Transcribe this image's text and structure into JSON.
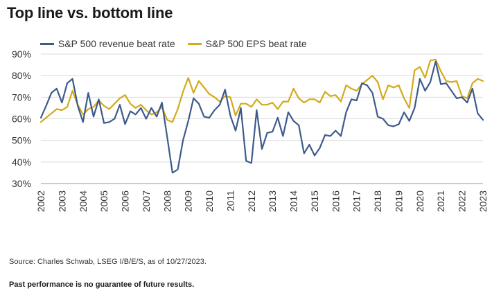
{
  "title": "Top line vs. bottom line",
  "source": "Source: Charles Schwab, LSEG I/B/E/S, as of 10/27/2023.",
  "disclaimer": "Past performance is no guarantee of future results.",
  "chart_data": {
    "type": "line",
    "title": "Top line vs. bottom line",
    "xlabel": "",
    "ylabel": "",
    "xlim": [
      2002,
      2023
    ],
    "ylim": [
      30,
      90
    ],
    "y_ticks": [
      "30%",
      "40%",
      "50%",
      "60%",
      "70%",
      "80%",
      "90%"
    ],
    "y_tick_values": [
      30,
      40,
      50,
      60,
      70,
      80,
      90
    ],
    "x_ticks": [
      "2002",
      "2003",
      "2004",
      "2005",
      "2006",
      "2007",
      "2008",
      "2009",
      "2010",
      "2011",
      "2012",
      "2013",
      "2014",
      "2015",
      "2016",
      "2017",
      "2018",
      "2019",
      "2020",
      "2021",
      "2022",
      "2023"
    ],
    "grid": "horizontal",
    "legend_position": "top-left",
    "series": [
      {
        "name": "S&P 500 revenue beat rate",
        "color": "#3d5a8c",
        "x": [
          2002,
          2002.25,
          2002.5,
          2002.75,
          2003,
          2003.25,
          2003.5,
          2003.75,
          2004,
          2004.25,
          2004.5,
          2004.75,
          2005,
          2005.25,
          2005.5,
          2005.75,
          2006,
          2006.25,
          2006.5,
          2006.75,
          2007,
          2007.25,
          2007.5,
          2007.75,
          2008,
          2008.25,
          2008.5,
          2008.75,
          2009,
          2009.25,
          2009.5,
          2009.75,
          2010,
          2010.25,
          2010.5,
          2010.75,
          2011,
          2011.25,
          2011.5,
          2011.75,
          2012,
          2012.25,
          2012.5,
          2012.75,
          2013,
          2013.25,
          2013.5,
          2013.75,
          2014,
          2014.25,
          2014.5,
          2014.75,
          2015,
          2015.25,
          2015.5,
          2015.75,
          2016,
          2016.25,
          2016.5,
          2016.75,
          2017,
          2017.25,
          2017.5,
          2017.75,
          2018,
          2018.25,
          2018.5,
          2018.75,
          2019,
          2019.25,
          2019.5,
          2019.75,
          2020,
          2020.25,
          2020.5,
          2020.75,
          2021,
          2021.25,
          2021.5,
          2021.75,
          2022,
          2022.25,
          2022.5,
          2022.75,
          2023
        ],
        "values": [
          60.5,
          66,
          72,
          74,
          67.5,
          76.5,
          78.5,
          66,
          58.5,
          72,
          61,
          69,
          58,
          58.5,
          60,
          66.5,
          57.5,
          63.5,
          62,
          65,
          60,
          65,
          61,
          67.5,
          51.5,
          35,
          36.5,
          50,
          59,
          69.5,
          67,
          61,
          60.5,
          64,
          66.5,
          73.5,
          61.5,
          54.5,
          65,
          40.5,
          39.5,
          64,
          46,
          53.5,
          54,
          60.5,
          52,
          63,
          59,
          57,
          44,
          48,
          43,
          46.5,
          52.5,
          52,
          54.5,
          52,
          63,
          69,
          68.5,
          76.5,
          75.5,
          72,
          61,
          60,
          57,
          56.5,
          57.5,
          63,
          59,
          65,
          78.5,
          73,
          77,
          86.5,
          76,
          76.5,
          73,
          69.5,
          70,
          67.5,
          74,
          62.5,
          59.5
        ]
      },
      {
        "name": "S&P 500 EPS beat rate",
        "color": "#d4a91a",
        "x": [
          2002,
          2002.25,
          2002.5,
          2002.75,
          2003,
          2003.25,
          2003.5,
          2003.75,
          2004,
          2004.25,
          2004.5,
          2004.75,
          2005,
          2005.25,
          2005.5,
          2005.75,
          2006,
          2006.25,
          2006.5,
          2006.75,
          2007,
          2007.25,
          2007.5,
          2007.75,
          2008,
          2008.25,
          2008.5,
          2008.75,
          2009,
          2009.25,
          2009.5,
          2009.75,
          2010,
          2010.25,
          2010.5,
          2010.75,
          2011,
          2011.25,
          2011.5,
          2011.75,
          2012,
          2012.25,
          2012.5,
          2012.75,
          2013,
          2013.25,
          2013.5,
          2013.75,
          2014,
          2014.25,
          2014.5,
          2014.75,
          2015,
          2015.25,
          2015.5,
          2015.75,
          2016,
          2016.25,
          2016.5,
          2016.75,
          2017,
          2017.25,
          2017.5,
          2017.75,
          2018,
          2018.25,
          2018.5,
          2018.75,
          2019,
          2019.25,
          2019.5,
          2019.75,
          2020,
          2020.25,
          2020.5,
          2020.75,
          2021,
          2021.25,
          2021.5,
          2021.75,
          2022,
          2022.25,
          2022.5,
          2022.75,
          2023
        ],
        "values": [
          58.5,
          60.5,
          62.5,
          64.5,
          64,
          65.5,
          73,
          66.5,
          62,
          64.5,
          65.5,
          68.5,
          66,
          64.5,
          67,
          69.5,
          71,
          67,
          65,
          66.5,
          64,
          62,
          63,
          65.5,
          59.5,
          58.5,
          64.5,
          72.5,
          79,
          72,
          77.5,
          74.5,
          71.5,
          70,
          68,
          70.5,
          70,
          61.5,
          67,
          67,
          65.5,
          69,
          66.5,
          66.5,
          67.5,
          64.5,
          68,
          68,
          74,
          69.5,
          67.5,
          69,
          69,
          67.5,
          72.5,
          70.5,
          71,
          68,
          75.5,
          74,
          73,
          76,
          78,
          80,
          77,
          69,
          75.5,
          74.5,
          75.5,
          69.5,
          65,
          82.5,
          84,
          79,
          87,
          87.5,
          82,
          77.5,
          77,
          77.5,
          70.5,
          69.5,
          76.5,
          78.5,
          77.5
        ]
      }
    ]
  }
}
